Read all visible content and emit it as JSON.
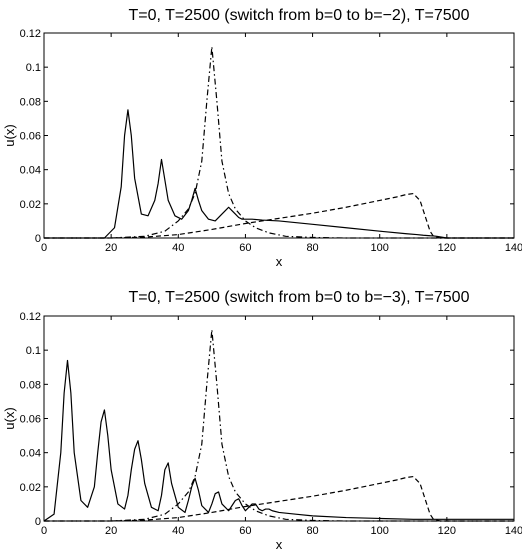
{
  "chart_data": [
    {
      "type": "line",
      "title": "T=0, T=2500 (switch from b=0 to b=−2), T=7500",
      "xlabel": "x",
      "ylabel": "u(x)",
      "xlim": [
        0,
        140
      ],
      "ylim": [
        0,
        0.12
      ],
      "xticks": [
        "0",
        "20",
        "40",
        "60",
        "80",
        "100",
        "120",
        "140"
      ],
      "yticks": [
        "0",
        "0.02",
        "0.04",
        "0.06",
        "0.08",
        "0.1",
        "0.12"
      ],
      "grid": false,
      "series": [
        {
          "style": "dashdot",
          "x": [
            0,
            20,
            30,
            36,
            40,
            43,
            45,
            47,
            48.5,
            50,
            51.5,
            53,
            55,
            57,
            60,
            63,
            67,
            72,
            80,
            90,
            140
          ],
          "y": [
            0,
            0,
            0.001,
            0.004,
            0.01,
            0.017,
            0.026,
            0.045,
            0.08,
            0.112,
            0.08,
            0.045,
            0.026,
            0.017,
            0.01,
            0.006,
            0.003,
            0.001,
            0.0003,
            0,
            0
          ]
        },
        {
          "style": "solid",
          "x": [
            0,
            18,
            21,
            23,
            24,
            25,
            26,
            27,
            29,
            31,
            33,
            34,
            35,
            36,
            37,
            39,
            41,
            43,
            44,
            45,
            46,
            47,
            49,
            51,
            53,
            54,
            55,
            56,
            57,
            58,
            59,
            60,
            62,
            65,
            70,
            80,
            90,
            100,
            108,
            111,
            113,
            115,
            116,
            117,
            120,
            140
          ],
          "y": [
            0,
            0,
            0.006,
            0.03,
            0.06,
            0.075,
            0.06,
            0.035,
            0.014,
            0.013,
            0.022,
            0.032,
            0.046,
            0.034,
            0.022,
            0.013,
            0.011,
            0.016,
            0.022,
            0.029,
            0.022,
            0.016,
            0.011,
            0.01,
            0.014,
            0.016,
            0.018,
            0.016,
            0.014,
            0.012,
            0.011,
            0.011,
            0.011,
            0.0105,
            0.01,
            0.008,
            0.006,
            0.004,
            0.0025,
            0.002,
            0.0016,
            0.0013,
            0.0012,
            0.001,
            0,
            0
          ]
        },
        {
          "style": "dashed",
          "x": [
            0,
            20,
            30,
            40,
            50,
            60,
            70,
            80,
            90,
            100,
            105,
            108,
            110,
            112,
            114,
            115,
            116,
            118,
            140
          ],
          "y": [
            0,
            0,
            0.0005,
            0.002,
            0.005,
            0.0085,
            0.0115,
            0.0145,
            0.018,
            0.022,
            0.024,
            0.0255,
            0.026,
            0.022,
            0.01,
            0.004,
            0.001,
            0,
            0
          ]
        }
      ]
    },
    {
      "type": "line",
      "title": "T=0, T=2500 (switch from b=0 to b=−3), T=7500",
      "xlabel": "x",
      "ylabel": "u(x)",
      "xlim": [
        0,
        140
      ],
      "ylim": [
        0,
        0.12
      ],
      "xticks": [
        "0",
        "20",
        "40",
        "60",
        "80",
        "100",
        "120",
        "140"
      ],
      "yticks": [
        "0",
        "0.02",
        "0.04",
        "0.06",
        "0.08",
        "0.1",
        "0.12"
      ],
      "grid": false,
      "series": [
        {
          "style": "dashdot",
          "x": [
            0,
            20,
            30,
            36,
            40,
            43,
            45,
            47,
            48.5,
            50,
            51.5,
            53,
            55,
            57,
            60,
            63,
            67,
            72,
            80,
            90,
            140
          ],
          "y": [
            0,
            0,
            0.001,
            0.004,
            0.01,
            0.017,
            0.026,
            0.045,
            0.08,
            0.112,
            0.08,
            0.045,
            0.026,
            0.017,
            0.01,
            0.006,
            0.003,
            0.001,
            0.0003,
            0,
            0
          ]
        },
        {
          "style": "solid",
          "x": [
            0,
            3,
            5,
            6,
            7,
            8,
            9,
            11,
            13,
            15,
            16,
            17,
            18,
            19,
            20,
            22,
            24,
            25,
            26,
            27,
            28,
            29,
            30,
            32,
            34,
            35,
            36,
            37,
            38,
            40,
            42,
            43,
            44,
            45,
            46,
            47,
            49,
            50,
            51,
            52,
            53,
            55,
            56,
            57,
            58,
            59,
            60,
            61,
            62,
            63,
            64,
            65,
            66,
            67,
            68,
            70,
            75,
            80,
            90,
            100,
            110,
            140
          ],
          "y": [
            0,
            0.004,
            0.04,
            0.075,
            0.094,
            0.075,
            0.04,
            0.012,
            0.008,
            0.02,
            0.04,
            0.058,
            0.065,
            0.05,
            0.03,
            0.01,
            0.007,
            0.015,
            0.03,
            0.042,
            0.047,
            0.036,
            0.022,
            0.008,
            0.006,
            0.015,
            0.03,
            0.034,
            0.022,
            0.008,
            0.005,
            0.012,
            0.02,
            0.025,
            0.018,
            0.009,
            0.005,
            0.01,
            0.016,
            0.017,
            0.01,
            0.006,
            0.009,
            0.012,
            0.013,
            0.009,
            0.006,
            0.008,
            0.01,
            0.01,
            0.007,
            0.006,
            0.007,
            0.007,
            0.006,
            0.005,
            0.004,
            0.003,
            0.002,
            0.0015,
            0.001,
            0.001
          ]
        },
        {
          "style": "dashed",
          "x": [
            0,
            20,
            30,
            40,
            50,
            60,
            70,
            80,
            90,
            100,
            105,
            108,
            110,
            112,
            114,
            115,
            116,
            118,
            140
          ],
          "y": [
            0,
            0,
            0.0005,
            0.002,
            0.005,
            0.0085,
            0.0115,
            0.0145,
            0.018,
            0.022,
            0.024,
            0.0255,
            0.026,
            0.022,
            0.01,
            0.004,
            0.001,
            0,
            0
          ]
        }
      ]
    }
  ]
}
